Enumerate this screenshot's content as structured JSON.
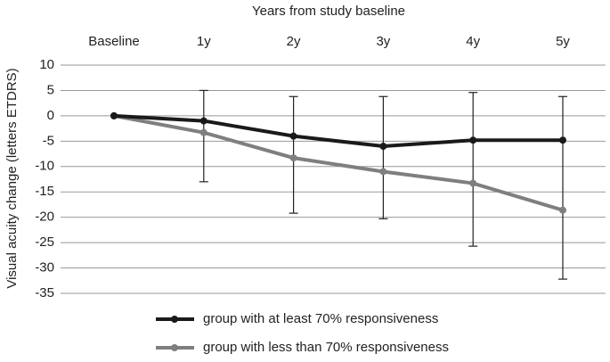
{
  "chart_data": {
    "type": "line",
    "title": "Years from study baseline",
    "y_label": "Visual acuity change (letters ETDRS)",
    "categories": [
      "Baseline",
      "1y",
      "2y",
      "3y",
      "4y",
      "5y"
    ],
    "series": [
      {
        "name": "group with at least 70% responsiveness",
        "color": "#1a1a1a",
        "values": [
          0,
          -1,
          -4,
          -6,
          -4.8,
          -4.8
        ]
      },
      {
        "name": "group with less than 70% responsiveness",
        "color": "#7f7f7f",
        "values": [
          0,
          -3.3,
          -8.3,
          -11,
          -13.3,
          -18.6
        ]
      }
    ],
    "error_bars": {
      "high": [
        null,
        5,
        3.8,
        3.8,
        4.6,
        3.8
      ],
      "low": [
        null,
        -13,
        -19.2,
        -20.3,
        -25.7,
        -32.2
      ]
    },
    "ylim": [
      -35,
      10
    ],
    "yticks": [
      10,
      5,
      0,
      -5,
      -10,
      -15,
      -20,
      -25,
      -30,
      -35
    ],
    "grid": true
  }
}
